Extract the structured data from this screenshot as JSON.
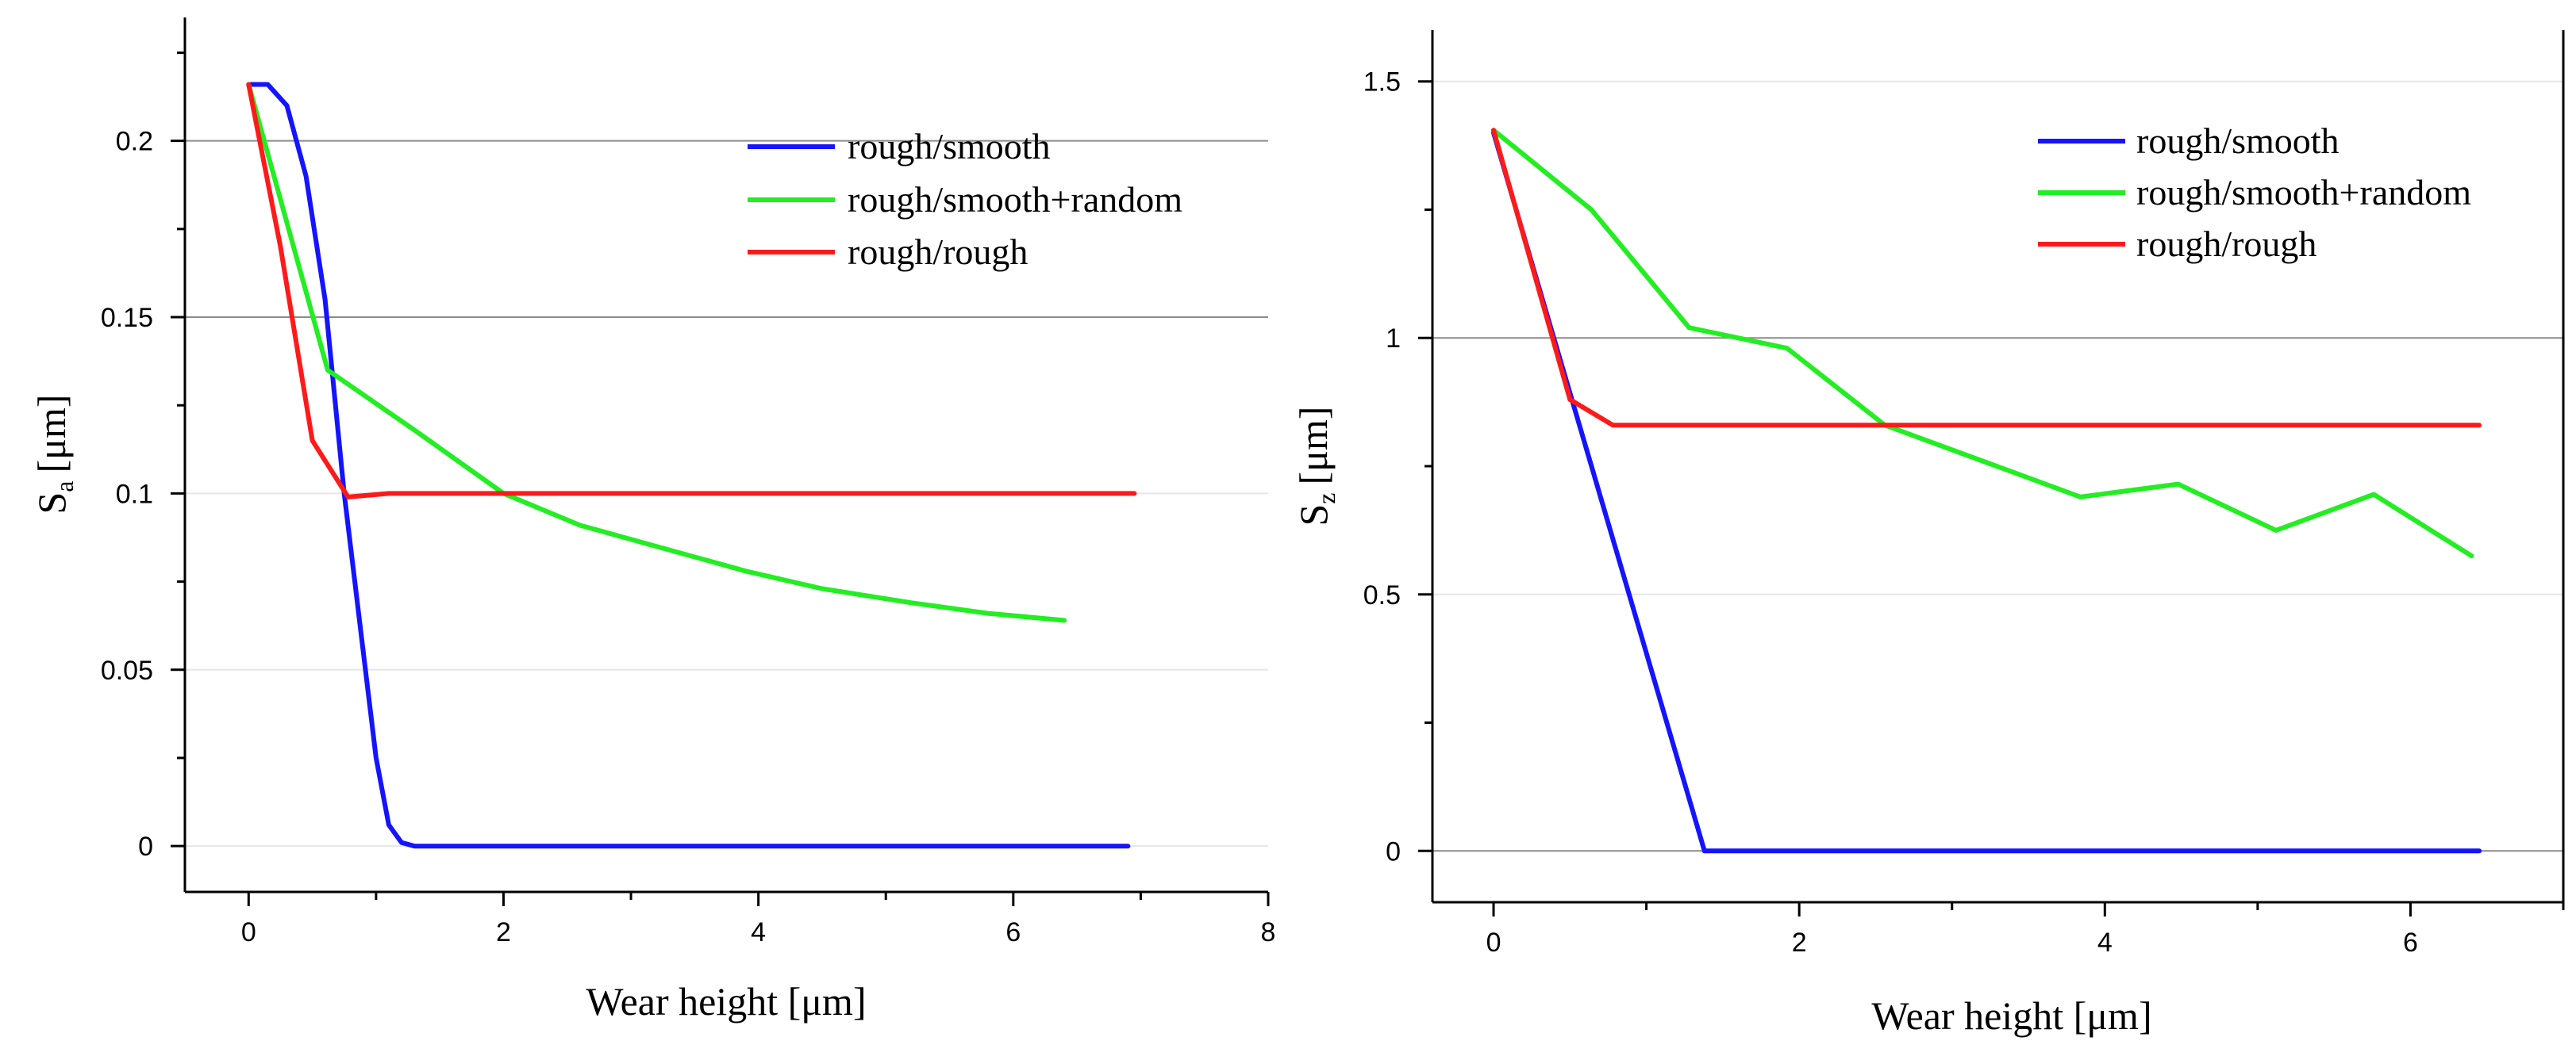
{
  "chart_data": [
    {
      "type": "line",
      "ylabel_main": "S",
      "ylabel_sub": "a",
      "ylabel_unit": "[μm]",
      "xlabel": "Wear height [μm]",
      "xlim": [
        -0.5,
        8
      ],
      "ylim": [
        -0.013,
        0.235
      ],
      "xticks": [
        0,
        2,
        4,
        6,
        8
      ],
      "xtick_labels": [
        "0",
        "2",
        "4",
        "6",
        "8"
      ],
      "yticks": [
        0,
        0.05,
        0.1,
        0.15,
        0.2
      ],
      "ytick_labels": [
        "0",
        "0.05",
        "0.1",
        "0.15",
        "0.2"
      ],
      "major_grid": [
        0.15,
        0.2
      ],
      "minor_grid": [
        0,
        0.05,
        0.1
      ],
      "legend_position": "top-right",
      "series": [
        {
          "name": "rough/smooth",
          "color": "#1414ff",
          "x": [
            0,
            0.15,
            0.3,
            0.45,
            0.6,
            0.75,
            0.9,
            1.0,
            1.1,
            1.2,
            1.3,
            1.5,
            2,
            3,
            4,
            5,
            6,
            6.9
          ],
          "y": [
            0.216,
            0.216,
            0.21,
            0.19,
            0.155,
            0.1,
            0.055,
            0.025,
            0.006,
            0.001,
            0,
            0,
            0,
            0,
            0,
            0,
            0,
            0
          ]
        },
        {
          "name": "rough/smooth+random",
          "color": "#22ee22",
          "x": [
            0,
            0.62,
            1.3,
            2.0,
            2.6,
            3.3,
            3.9,
            4.5,
            5.2,
            5.8,
            6.4
          ],
          "y": [
            0.216,
            0.135,
            0.118,
            0.1,
            0.091,
            0.084,
            0.078,
            0.073,
            0.069,
            0.066,
            0.064
          ]
        },
        {
          "name": "rough/rough",
          "color": "#ff1a1a",
          "x": [
            0,
            0.25,
            0.5,
            0.78,
            1.1,
            2,
            3,
            4,
            5,
            6,
            6.95
          ],
          "y": [
            0.216,
            0.17,
            0.115,
            0.099,
            0.1,
            0.1,
            0.1,
            0.1,
            0.1,
            0.1,
            0.1
          ]
        }
      ]
    },
    {
      "type": "line",
      "ylabel_main": "S",
      "ylabel_sub": "z",
      "ylabel_unit": "[μm]",
      "xlabel": "Wear height [μm]",
      "xlim": [
        -0.4,
        7.0
      ],
      "ylim": [
        -0.1,
        1.6
      ],
      "xticks": [
        0,
        2,
        4,
        6
      ],
      "xtick_labels": [
        "0",
        "2",
        "4",
        "6"
      ],
      "yticks": [
        0,
        0.5,
        1,
        1.5
      ],
      "ytick_labels": [
        "0",
        "0.5",
        "1",
        "1.5"
      ],
      "major_grid": [
        0,
        1
      ],
      "minor_grid": [
        0.5,
        1.5
      ],
      "legend_position": "top-right",
      "series": [
        {
          "name": "rough/smooth",
          "color": "#1414ff",
          "x": [
            0,
            1.38,
            2,
            3,
            4,
            5,
            6,
            6.45
          ],
          "y": [
            1.4,
            0,
            0,
            0,
            0,
            0,
            0,
            0
          ]
        },
        {
          "name": "rough/smooth+random",
          "color": "#22ee22",
          "x": [
            0,
            0.64,
            1.28,
            1.92,
            2.56,
            3.2,
            3.84,
            4.48,
            5.12,
            5.76,
            6.4
          ],
          "y": [
            1.405,
            1.25,
            1.02,
            0.98,
            0.83,
            0.76,
            0.69,
            0.715,
            0.625,
            0.695,
            0.575
          ]
        },
        {
          "name": "rough/rough",
          "color": "#ff1a1a",
          "x": [
            0,
            0.5,
            0.78,
            1.5,
            3,
            4,
            5,
            6,
            6.45
          ],
          "y": [
            1.405,
            0.88,
            0.83,
            0.83,
            0.83,
            0.83,
            0.83,
            0.83,
            0.83
          ]
        }
      ]
    }
  ]
}
